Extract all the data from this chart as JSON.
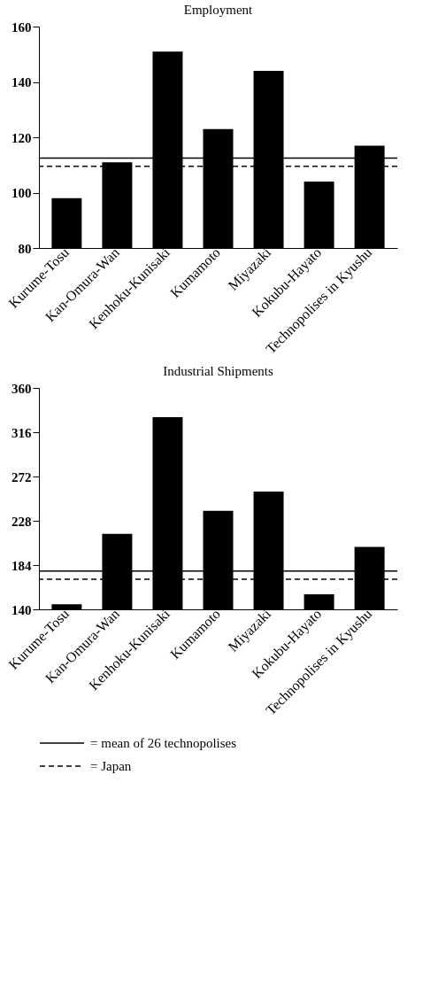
{
  "chart_data": [
    {
      "type": "bar",
      "title": "Employment",
      "categories": [
        "Kurume-Tosu",
        "Kan-Omura-Wan",
        "Kenhoku-Kunisaki",
        "Kumamoto",
        "Miyazaki",
        "Kokubu-Hayato",
        "Technopolises in Kyushu"
      ],
      "values": [
        98,
        111,
        151,
        123,
        144,
        104,
        117
      ],
      "color": "#000000",
      "ylim": [
        80,
        160
      ],
      "yticks": [
        80,
        100,
        120,
        140,
        160
      ],
      "grid": false,
      "ref_lines": [
        {
          "axis": "y",
          "value": 112.5,
          "line_style": "solid",
          "color": "#000000"
        },
        {
          "axis": "y",
          "value": 109.5,
          "line_style": "dashed",
          "color": "#000000"
        }
      ]
    },
    {
      "type": "bar",
      "title": "Industrial Shipments",
      "categories": [
        "Kurume-Tosu",
        "Kan-Omura-Wan",
        "Kenhoku-Kunisaki",
        "Kumamoto",
        "Miyazaki",
        "Kokubu-Hayato",
        "Technopolises in Kyushu"
      ],
      "values": [
        145,
        215,
        331,
        238,
        257,
        155,
        202
      ],
      "color": "#000000",
      "ylim": [
        140,
        360
      ],
      "yticks": [
        140,
        184,
        228,
        272,
        316,
        360
      ],
      "grid": false,
      "legend": "bottom",
      "ref_lines": [
        {
          "axis": "y",
          "value": 178,
          "line_style": "solid",
          "color": "#000000",
          "label": "= mean of 26 technopolises"
        },
        {
          "axis": "y",
          "value": 170,
          "line_style": "dashed",
          "color": "#000000",
          "label": "= Japan"
        }
      ]
    }
  ]
}
